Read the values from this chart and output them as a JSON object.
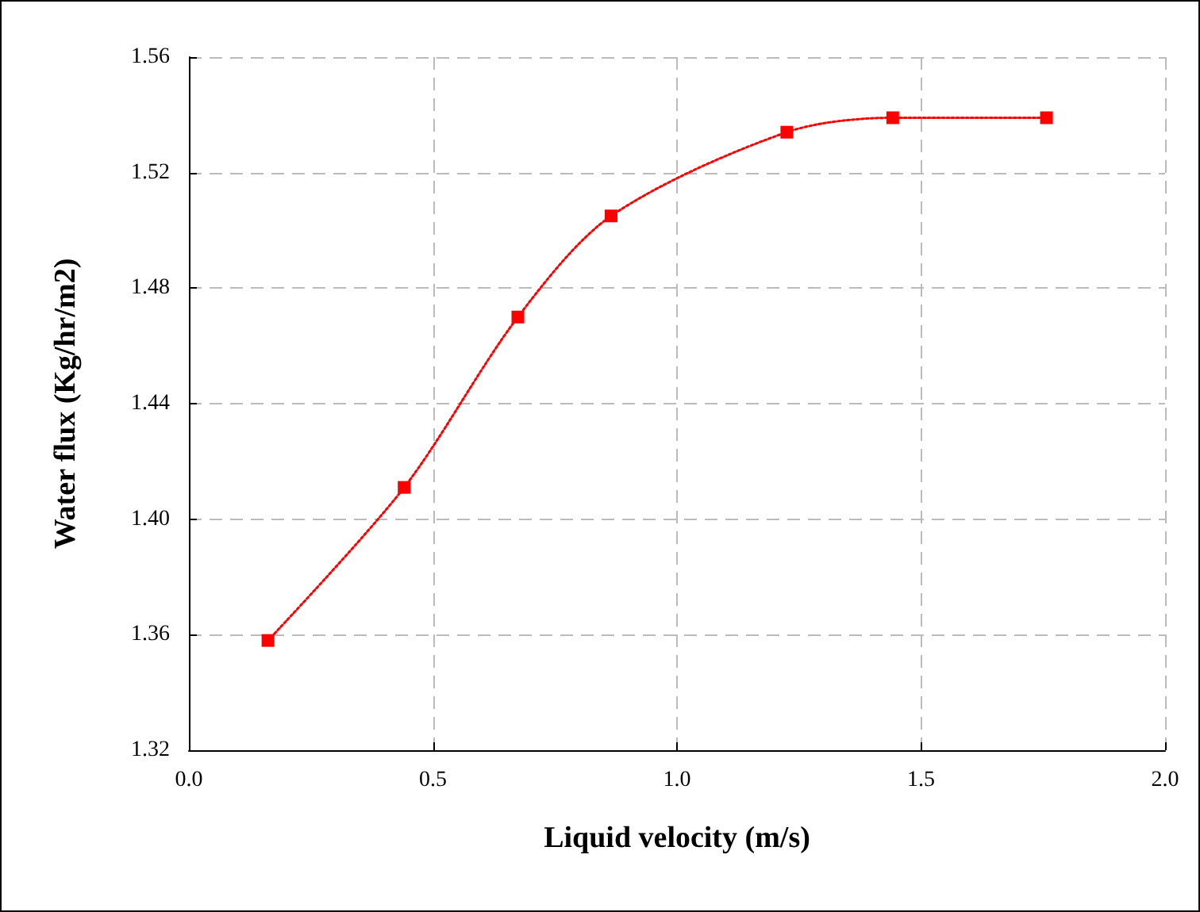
{
  "chart_data": {
    "type": "line",
    "xlabel": "Liquid velocity (m/s)",
    "ylabel": "Water flux (Kg/hr/m2)",
    "x": [
      0.162,
      0.441,
      0.674,
      0.865,
      1.225,
      1.442,
      1.757
    ],
    "series": [
      {
        "color": "#ff0000",
        "values": [
          1.358,
          1.411,
          1.47,
          1.505,
          1.534,
          1.539,
          1.539
        ]
      }
    ],
    "xlim": [
      0,
      2
    ],
    "xticks": [
      {
        "value": 0,
        "label": "0.0"
      },
      {
        "value": 0.5,
        "label": "0.5"
      },
      {
        "value": 1,
        "label": "1.0"
      },
      {
        "value": 1.5,
        "label": "1.5"
      },
      {
        "value": 2,
        "label": "2.0"
      }
    ],
    "ylim": [
      1.32,
      1.56
    ],
    "yticks": [
      {
        "value": 1.32,
        "label": "1.32"
      },
      {
        "value": 1.36,
        "label": "1.36"
      },
      {
        "value": 1.4,
        "label": "1.40"
      },
      {
        "value": 1.44,
        "label": "1.44"
      },
      {
        "value": 1.48,
        "label": "1.48"
      },
      {
        "value": 1.52,
        "label": "1.52"
      },
      {
        "value": 1.56,
        "label": "1.56"
      }
    ],
    "grid": true,
    "marker": "square",
    "line_style": "dotted"
  }
}
